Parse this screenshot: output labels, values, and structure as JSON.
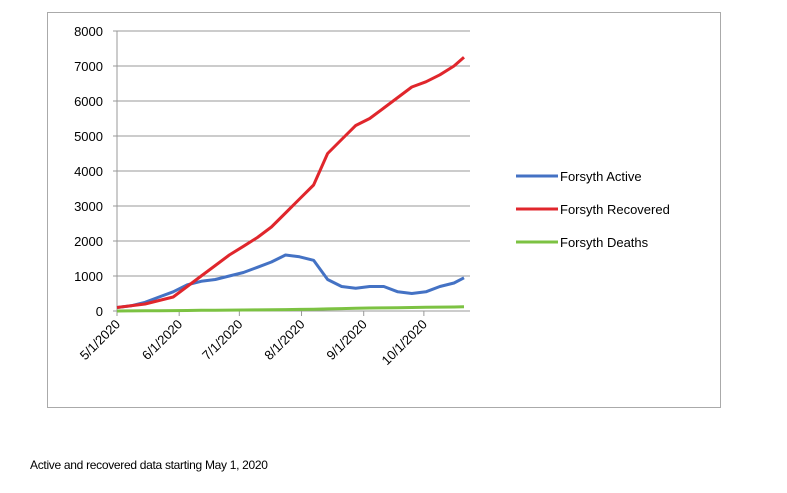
{
  "chart_data": {
    "type": "line",
    "x": [
      "2020-05-01",
      "2020-05-08",
      "2020-05-15",
      "2020-05-22",
      "2020-05-29",
      "2020-06-05",
      "2020-06-12",
      "2020-06-19",
      "2020-06-26",
      "2020-07-03",
      "2020-07-10",
      "2020-07-17",
      "2020-07-24",
      "2020-07-31",
      "2020-08-07",
      "2020-08-14",
      "2020-08-21",
      "2020-08-28",
      "2020-09-04",
      "2020-09-11",
      "2020-09-18",
      "2020-09-25",
      "2020-10-02",
      "2020-10-09",
      "2020-10-16",
      "2020-10-21"
    ],
    "series": [
      {
        "name": "Forsyth Active",
        "color": "#4472c4",
        "values": [
          100,
          150,
          250,
          400,
          550,
          750,
          850,
          900,
          1000,
          1100,
          1250,
          1400,
          1600,
          1550,
          1450,
          900,
          700,
          650,
          700,
          700,
          550,
          500,
          550,
          700,
          800,
          950
        ]
      },
      {
        "name": "Forsyth Recovered",
        "color": "#e0262c",
        "values": [
          100,
          150,
          200,
          300,
          400,
          700,
          1000,
          1300,
          1600,
          1850,
          2100,
          2400,
          2800,
          3200,
          3600,
          4500,
          4900,
          5300,
          5500,
          5800,
          6100,
          6400,
          6550,
          6750,
          7000,
          7250
        ]
      },
      {
        "name": "Forsyth Deaths",
        "color": "#7cc242",
        "values": [
          0,
          2,
          5,
          8,
          10,
          15,
          20,
          22,
          25,
          28,
          30,
          35,
          40,
          45,
          50,
          60,
          70,
          80,
          85,
          90,
          95,
          100,
          105,
          110,
          115,
          120
        ]
      }
    ],
    "ylim": [
      0,
      8000
    ],
    "yticks": [
      0,
      1000,
      2000,
      3000,
      4000,
      5000,
      6000,
      7000,
      8000
    ],
    "xlim": [
      "2020-05-01",
      "2020-10-24"
    ],
    "xticks": [
      {
        "value": "2020-05-01",
        "label": "5/1/2020"
      },
      {
        "value": "2020-06-01",
        "label": "6/1/2020"
      },
      {
        "value": "2020-07-01",
        "label": "7/1/2020"
      },
      {
        "value": "2020-08-01",
        "label": "8/1/2020"
      },
      {
        "value": "2020-09-01",
        "label": "9/1/2020"
      },
      {
        "value": "2020-10-01",
        "label": "10/1/2020"
      }
    ],
    "grid": true,
    "legend": "right"
  },
  "caption": "Active and recovered data starting May 1, 2020"
}
